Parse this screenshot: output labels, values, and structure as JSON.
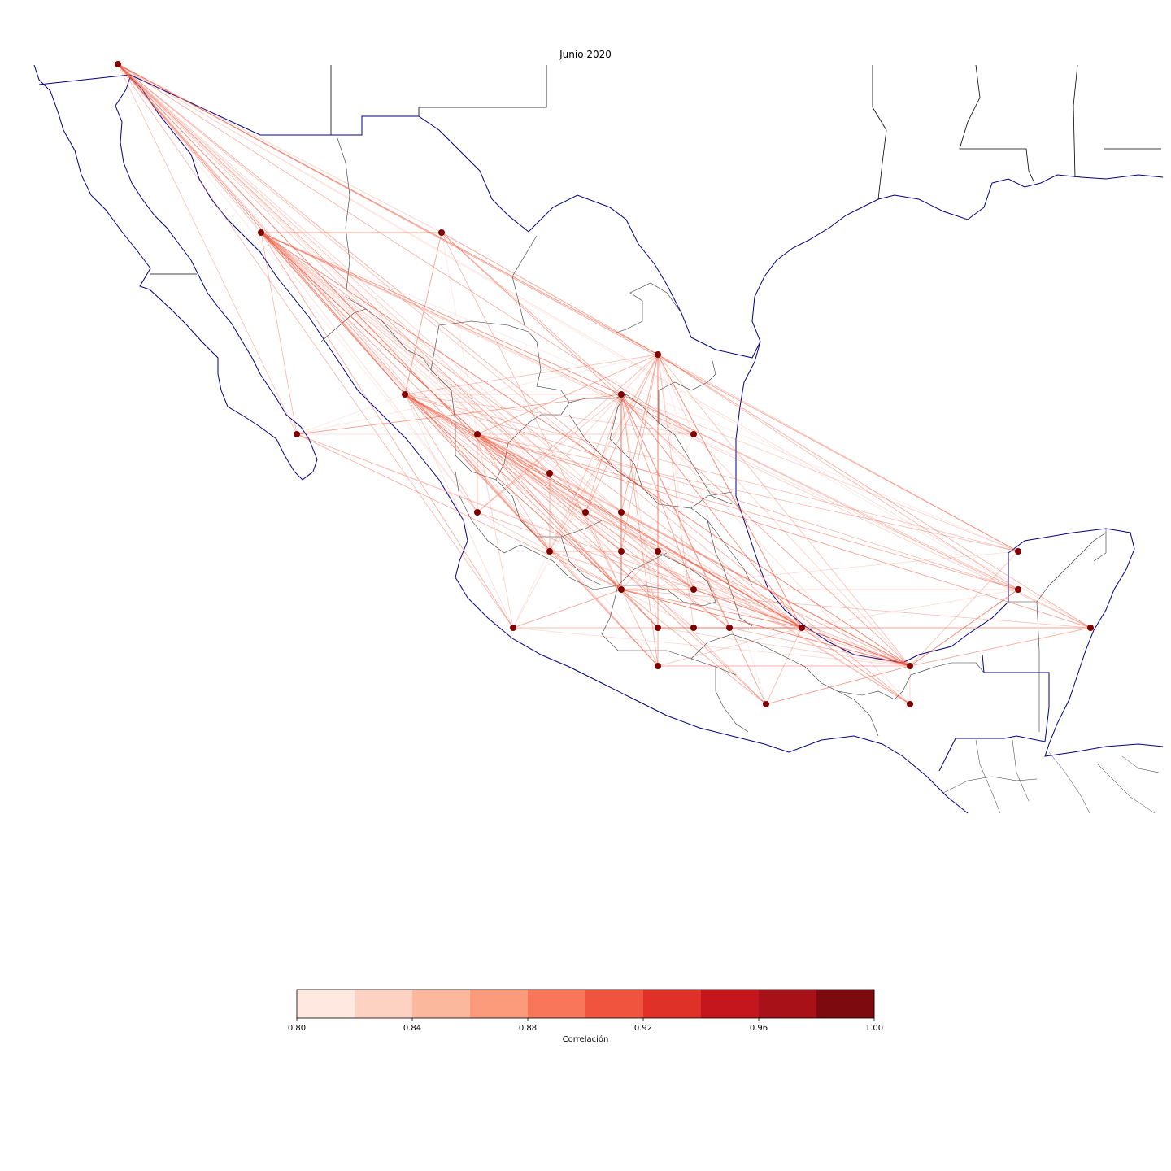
{
  "title": "Junio 2020",
  "colorbar": {
    "label": "Correlación",
    "ticks": [
      "0.80",
      "0.84",
      "0.88",
      "0.92",
      "0.96",
      "1.00"
    ],
    "min": 0.8,
    "max": 1.0,
    "colors": [
      "#fee8e0",
      "#fdd2c2",
      "#fcb89c",
      "#fc9a7c",
      "#f9765a",
      "#f0543f",
      "#e03129",
      "#c4161c",
      "#a81118",
      "#7d0a0f"
    ]
  },
  "colors": {
    "coastline": "#000080",
    "borders": "#333333",
    "node": "#800000",
    "edge": "#f05a40"
  },
  "chart_data": {
    "type": "network-map",
    "title": "Junio 2020",
    "colorbar_label": "Correlación",
    "colorbar_range": [
      0.8,
      1.0
    ],
    "node_count": 32
  }
}
